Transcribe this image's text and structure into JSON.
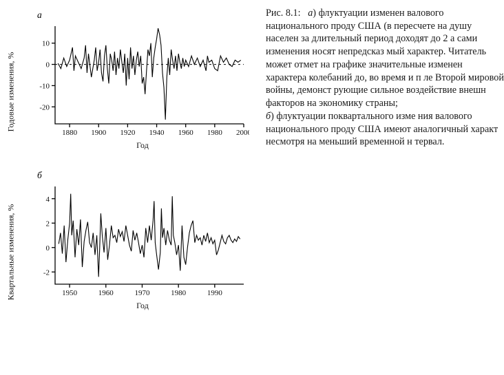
{
  "caption": {
    "fig_label": "Рис. 8.1:",
    "part_a_letter": "а",
    "text_a": ") флуктуации изменен валового национального проду США (в пересчете на душу населен за длительный период доходят до 2 а сами изменения носят непредсказ мый характер. Читатель может отмет на графике значительные изменен характера колебаний до, во время и п ле Второй мировой войны, демонст рующие сильное воздействие внешн факторов на экономику страны;",
    "part_b_letter": "б",
    "text_b": ") флуктуации поквартального изме ния валового национального проду США имеют аналогичный характ несмотря на меньший временной н тервал."
  },
  "chart_a": {
    "panel_label": "а",
    "type": "line",
    "ylabel": "Годовые изменения, %",
    "xlabel": "Год",
    "xlim": [
      1870,
      2000
    ],
    "ylim": [
      -28,
      18
    ],
    "xticks": [
      1880,
      1900,
      1920,
      1940,
      1960,
      1980,
      2000
    ],
    "yticks": [
      -20,
      -10,
      0,
      10
    ],
    "baseline": 0,
    "line_color": "#000000",
    "background_color": "#ffffff",
    "axis_color": "#000000",
    "linewidth": 1.1,
    "font_size_ticks": 11,
    "font_size_labels": 12,
    "series": [
      [
        1872,
        0.5
      ],
      [
        1874,
        -2
      ],
      [
        1876,
        3
      ],
      [
        1878,
        -1
      ],
      [
        1880,
        2
      ],
      [
        1882,
        8
      ],
      [
        1883,
        -3
      ],
      [
        1884,
        4
      ],
      [
        1886,
        1
      ],
      [
        1888,
        -2
      ],
      [
        1890,
        3
      ],
      [
        1891,
        9
      ],
      [
        1892,
        -4
      ],
      [
        1893,
        5
      ],
      [
        1895,
        -6
      ],
      [
        1897,
        2
      ],
      [
        1898,
        8
      ],
      [
        1899,
        -3
      ],
      [
        1900,
        1
      ],
      [
        1901,
        7
      ],
      [
        1902,
        -4
      ],
      [
        1903,
        -8
      ],
      [
        1904,
        4
      ],
      [
        1905,
        9
      ],
      [
        1906,
        -2
      ],
      [
        1907,
        -9
      ],
      [
        1908,
        5
      ],
      [
        1909,
        2
      ],
      [
        1910,
        -3
      ],
      [
        1911,
        6
      ],
      [
        1912,
        -5
      ],
      [
        1913,
        3
      ],
      [
        1914,
        -2
      ],
      [
        1915,
        7
      ],
      [
        1916,
        1
      ],
      [
        1917,
        -4
      ],
      [
        1918,
        5
      ],
      [
        1919,
        -10
      ],
      [
        1920,
        3
      ],
      [
        1921,
        -7
      ],
      [
        1922,
        8
      ],
      [
        1923,
        -2
      ],
      [
        1924,
        4
      ],
      [
        1925,
        -5
      ],
      [
        1926,
        2
      ],
      [
        1927,
        6
      ],
      [
        1928,
        -1
      ],
      [
        1929,
        4
      ],
      [
        1930,
        -9
      ],
      [
        1931,
        -6
      ],
      [
        1932,
        -14
      ],
      [
        1933,
        -3
      ],
      [
        1934,
        7
      ],
      [
        1935,
        4
      ],
      [
        1936,
        10
      ],
      [
        1937,
        -6
      ],
      [
        1938,
        3
      ],
      [
        1939,
        8
      ],
      [
        1940,
        12
      ],
      [
        1941,
        17
      ],
      [
        1942,
        14
      ],
      [
        1943,
        9
      ],
      [
        1944,
        -4
      ],
      [
        1945,
        -11
      ],
      [
        1946,
        -26
      ],
      [
        1947,
        -6
      ],
      [
        1948,
        3
      ],
      [
        1949,
        -5
      ],
      [
        1950,
        7
      ],
      [
        1951,
        2
      ],
      [
        1952,
        -2
      ],
      [
        1953,
        4
      ],
      [
        1954,
        -3
      ],
      [
        1955,
        5
      ],
      [
        1956,
        1
      ],
      [
        1957,
        -2
      ],
      [
        1958,
        3
      ],
      [
        1959,
        -1
      ],
      [
        1960,
        2
      ],
      [
        1962,
        -1
      ],
      [
        1964,
        4
      ],
      [
        1966,
        0
      ],
      [
        1968,
        3
      ],
      [
        1970,
        -1
      ],
      [
        1972,
        2
      ],
      [
        1974,
        -3
      ],
      [
        1975,
        4
      ],
      [
        1976,
        1
      ],
      [
        1978,
        2
      ],
      [
        1980,
        -2
      ],
      [
        1982,
        -3
      ],
      [
        1984,
        4
      ],
      [
        1986,
        1
      ],
      [
        1988,
        3
      ],
      [
        1990,
        0
      ],
      [
        1992,
        -1
      ],
      [
        1994,
        2
      ],
      [
        1996,
        1
      ],
      [
        1998,
        2
      ]
    ]
  },
  "chart_b": {
    "panel_label": "б",
    "type": "line",
    "ylabel": "Квартальные изменения, %",
    "xlabel": "Год",
    "xlim": [
      1946,
      1998
    ],
    "ylim": [
      -3,
      5
    ],
    "xticks": [
      1950,
      1960,
      1970,
      1980,
      1990
    ],
    "yticks": [
      -2,
      0,
      2,
      4
    ],
    "line_color": "#000000",
    "background_color": "#ffffff",
    "axis_color": "#000000",
    "linewidth": 1.1,
    "font_size_ticks": 11,
    "font_size_labels": 12,
    "series": [
      [
        1947,
        0.3
      ],
      [
        1947.5,
        1.2
      ],
      [
        1948,
        -0.5
      ],
      [
        1948.5,
        1.8
      ],
      [
        1949,
        -1.2
      ],
      [
        1949.5,
        0.6
      ],
      [
        1950,
        2.0
      ],
      [
        1950.3,
        4.4
      ],
      [
        1950.6,
        1.0
      ],
      [
        1951,
        2.2
      ],
      [
        1951.5,
        -0.8
      ],
      [
        1952,
        1.5
      ],
      [
        1952.5,
        0.2
      ],
      [
        1953,
        2.3
      ],
      [
        1953.5,
        -1.6
      ],
      [
        1954,
        0.5
      ],
      [
        1954.5,
        1.4
      ],
      [
        1955,
        2.1
      ],
      [
        1955.5,
        0.4
      ],
      [
        1956,
        0.0
      ],
      [
        1956.5,
        1.2
      ],
      [
        1957,
        -0.6
      ],
      [
        1957.5,
        1.0
      ],
      [
        1958,
        -2.4
      ],
      [
        1958.3,
        0.0
      ],
      [
        1958.6,
        2.8
      ],
      [
        1959,
        1.0
      ],
      [
        1959.5,
        -0.4
      ],
      [
        1960,
        1.6
      ],
      [
        1960.5,
        -1.0
      ],
      [
        1961,
        0.2
      ],
      [
        1961.5,
        1.8
      ],
      [
        1962,
        0.8
      ],
      [
        1962.5,
        1.0
      ],
      [
        1963,
        0.4
      ],
      [
        1963.5,
        1.5
      ],
      [
        1964,
        0.9
      ],
      [
        1964.5,
        1.3
      ],
      [
        1965,
        0.5
      ],
      [
        1965.5,
        1.8
      ],
      [
        1966,
        1.0
      ],
      [
        1966.5,
        0.2
      ],
      [
        1967,
        -0.3
      ],
      [
        1967.5,
        1.4
      ],
      [
        1968,
        0.6
      ],
      [
        1968.5,
        1.2
      ],
      [
        1969,
        0.4
      ],
      [
        1969.5,
        -0.5
      ],
      [
        1970,
        0.2
      ],
      [
        1970.5,
        -0.8
      ],
      [
        1971,
        1.6
      ],
      [
        1971.5,
        0.4
      ],
      [
        1972,
        1.8
      ],
      [
        1972.5,
        0.6
      ],
      [
        1973,
        2.2
      ],
      [
        1973.3,
        3.8
      ],
      [
        1973.6,
        0.4
      ],
      [
        1974,
        -0.6
      ],
      [
        1974.5,
        -1.8
      ],
      [
        1975,
        -0.4
      ],
      [
        1975.3,
        3.2
      ],
      [
        1975.6,
        0.8
      ],
      [
        1976,
        1.6
      ],
      [
        1976.5,
        0.2
      ],
      [
        1977,
        1.4
      ],
      [
        1977.5,
        0.6
      ],
      [
        1978,
        0.2
      ],
      [
        1978.3,
        4.2
      ],
      [
        1978.6,
        1.0
      ],
      [
        1979,
        0.4
      ],
      [
        1979.5,
        -0.6
      ],
      [
        1980,
        0.2
      ],
      [
        1980.5,
        -1.9
      ],
      [
        1981,
        1.8
      ],
      [
        1981.5,
        -0.8
      ],
      [
        1982,
        -1.4
      ],
      [
        1982.5,
        0.0
      ],
      [
        1983,
        1.2
      ],
      [
        1983.5,
        1.8
      ],
      [
        1984,
        2.2
      ],
      [
        1984.5,
        0.4
      ],
      [
        1985,
        1.0
      ],
      [
        1985.5,
        0.6
      ],
      [
        1986,
        0.8
      ],
      [
        1986.5,
        0.2
      ],
      [
        1987,
        1.0
      ],
      [
        1987.5,
        0.5
      ],
      [
        1988,
        1.2
      ],
      [
        1988.5,
        0.4
      ],
      [
        1989,
        0.8
      ],
      [
        1989.5,
        0.3
      ],
      [
        1990,
        0.6
      ],
      [
        1990.5,
        -0.6
      ],
      [
        1991,
        -0.2
      ],
      [
        1991.5,
        0.4
      ],
      [
        1992,
        1.0
      ],
      [
        1992.5,
        0.5
      ],
      [
        1993,
        0.3
      ],
      [
        1993.5,
        0.8
      ],
      [
        1994,
        1.0
      ],
      [
        1994.5,
        0.6
      ],
      [
        1995,
        0.4
      ],
      [
        1995.5,
        0.7
      ],
      [
        1996,
        0.5
      ],
      [
        1996.5,
        0.9
      ],
      [
        1997,
        0.7
      ]
    ]
  }
}
